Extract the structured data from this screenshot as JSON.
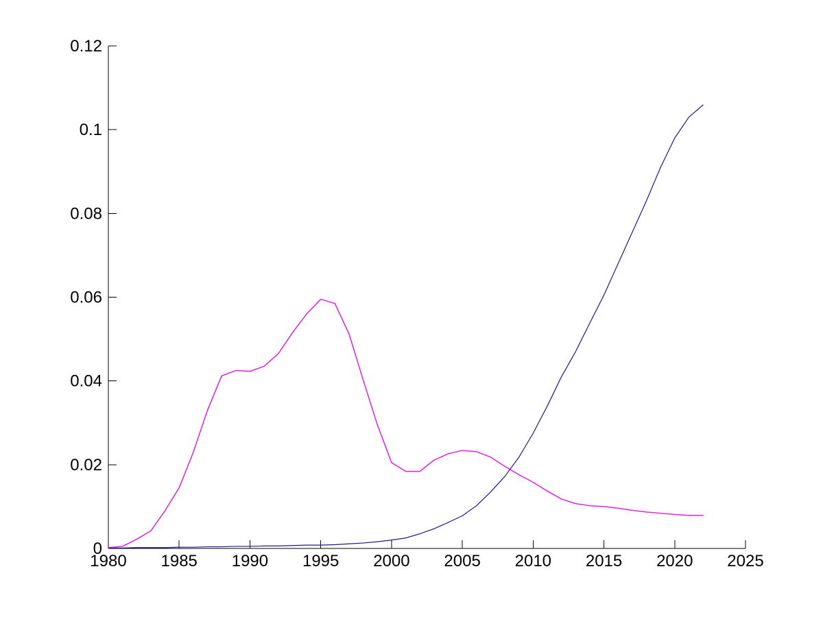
{
  "chart_data": {
    "type": "line",
    "title": "",
    "xlabel": "",
    "ylabel": "",
    "xlim": [
      1980,
      2025
    ],
    "ylim": [
      0,
      0.12
    ],
    "grid": false,
    "legend": "none",
    "background_color": "#ffffff",
    "axis_color": "#000000",
    "tick_direction": "inward",
    "x_ticks": [
      1980,
      1985,
      1990,
      1995,
      2000,
      2005,
      2010,
      2015,
      2020,
      2025
    ],
    "x_tick_labels": [
      "1980",
      "1985",
      "1990",
      "1995",
      "2000",
      "2005",
      "2010",
      "2015",
      "2020",
      "2025"
    ],
    "y_ticks": [
      0,
      0.02,
      0.04,
      0.06,
      0.08,
      0.1,
      0.12
    ],
    "y_tick_labels": [
      "0",
      "0.02",
      "0.04",
      "0.06",
      "0.08",
      "0.1",
      "0.12"
    ],
    "x": [
      1980,
      1981,
      1982,
      1983,
      1984,
      1985,
      1986,
      1987,
      1988,
      1989,
      1990,
      1991,
      1992,
      1993,
      1994,
      1995,
      1996,
      1997,
      1998,
      1999,
      2000,
      2001,
      2002,
      2003,
      2004,
      2005,
      2006,
      2007,
      2008,
      2009,
      2010,
      2011,
      2012,
      2013,
      2014,
      2015,
      2016,
      2017,
      2018,
      2019,
      2020,
      2021,
      2022
    ],
    "series": [
      {
        "name": "magenta-line",
        "color": "#e020e0",
        "values": [
          0.0002,
          0.0005,
          0.0022,
          0.0042,
          0.009,
          0.0145,
          0.023,
          0.033,
          0.0412,
          0.0425,
          0.0423,
          0.0435,
          0.0465,
          0.0515,
          0.056,
          0.0595,
          0.0585,
          0.0512,
          0.0402,
          0.0295,
          0.0205,
          0.0184,
          0.0184,
          0.0211,
          0.0226,
          0.0234,
          0.0231,
          0.0218,
          0.0196,
          0.0176,
          0.0158,
          0.0137,
          0.0118,
          0.0107,
          0.0102,
          0.01,
          0.0096,
          0.0091,
          0.0087,
          0.0084,
          0.0081,
          0.0079,
          0.0079
        ]
      },
      {
        "name": "navy-line",
        "color": "#1a1a8c",
        "values": [
          0.0001,
          0.0001,
          0.0002,
          0.0002,
          0.0002,
          0.0003,
          0.0003,
          0.0004,
          0.0004,
          0.0005,
          0.0005,
          0.0006,
          0.0006,
          0.0007,
          0.0008,
          0.0008,
          0.0009,
          0.0011,
          0.0013,
          0.0016,
          0.002,
          0.0025,
          0.0035,
          0.0047,
          0.0062,
          0.0078,
          0.0102,
          0.0135,
          0.0172,
          0.0218,
          0.0275,
          0.034,
          0.041,
          0.047,
          0.0538,
          0.0605,
          0.068,
          0.0755,
          0.083,
          0.091,
          0.098,
          0.103,
          0.1059
        ]
      }
    ]
  }
}
